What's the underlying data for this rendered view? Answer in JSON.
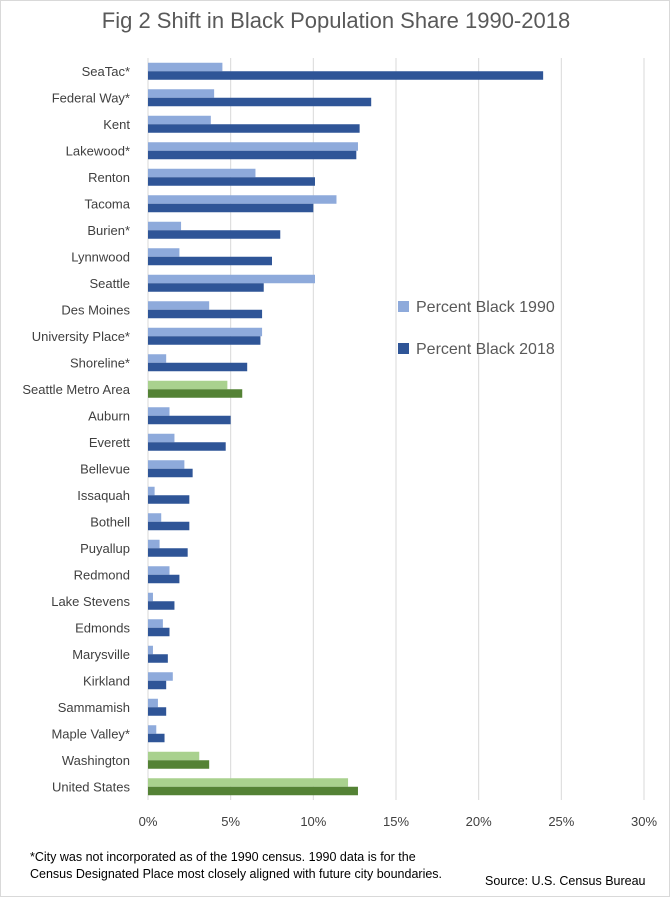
{
  "chart_data": {
    "type": "bar",
    "orientation": "horizontal",
    "title": "Fig 2 Shift in Black Population Share 1990-2018",
    "categories": [
      "SeaTac*",
      "Federal Way*",
      "Kent",
      "Lakewood*",
      "Renton",
      "Tacoma",
      "Burien*",
      "Lynnwood",
      "Seattle",
      "Des Moines",
      "University Place*",
      "Shoreline*",
      "Seattle Metro Area",
      "Auburn",
      "Everett",
      "Bellevue",
      "Issaquah",
      "Bothell",
      "Puyallup",
      "Redmond",
      "Lake Stevens",
      "Edmonds",
      "Marysville",
      "Kirkland",
      "Sammamish",
      "Maple Valley*",
      "Washington",
      "United States"
    ],
    "highlight_categories": [
      "Seattle Metro Area",
      "Washington",
      "United States"
    ],
    "series": [
      {
        "name": "Percent Black 1990",
        "color": "#8eaadb",
        "highlight_color": "#a9d18e",
        "values": [
          4.5,
          4.0,
          3.8,
          12.7,
          6.5,
          11.4,
          2.0,
          1.9,
          10.1,
          3.7,
          6.9,
          1.1,
          4.8,
          1.3,
          1.6,
          2.2,
          0.4,
          0.8,
          0.7,
          1.3,
          0.3,
          0.9,
          0.3,
          1.5,
          0.6,
          0.5,
          3.1,
          12.1
        ]
      },
      {
        "name": "Percent Black 2018",
        "color": "#2f5597",
        "highlight_color": "#548235",
        "values": [
          23.9,
          13.5,
          12.8,
          12.6,
          10.1,
          10.0,
          8.0,
          7.5,
          7.0,
          6.9,
          6.8,
          6.0,
          5.7,
          5.0,
          4.7,
          2.7,
          2.5,
          2.5,
          2.4,
          1.9,
          1.6,
          1.3,
          1.2,
          1.1,
          1.1,
          1.0,
          3.7,
          12.7
        ]
      }
    ],
    "xlim": [
      0,
      30
    ],
    "xticks": [
      "0%",
      "5%",
      "10%",
      "15%",
      "20%",
      "25%",
      "30%"
    ],
    "xtick_values": [
      0,
      5,
      10,
      15,
      20,
      25,
      30
    ],
    "grid": "vertical",
    "legend_placement": "right-middle"
  },
  "footnote_line1": "*City was not incorporated as of the 1990  census. 1990 data is for the",
  "footnote_line2": "Census Designated Place most closely aligned with future city boundaries.",
  "source": "Source: U.S. Census Bureau"
}
